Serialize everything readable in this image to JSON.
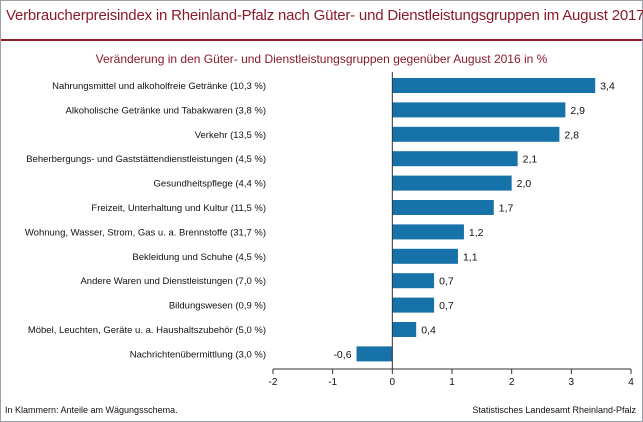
{
  "header": {
    "title": "Verbraucherpreisindex in Rheinland-Pfalz nach Güter- und Dienstleistungsgruppen im August 2017"
  },
  "chart_data": {
    "type": "bar",
    "orientation": "horizontal",
    "title": "Verbraucherpreisindex in Rheinland-Pfalz nach Güter- und Dienstleistungsgruppen im August 2017",
    "subtitle": "Veränderung in den Güter- und Dienstleistungsgruppen gegenüber August 2016 in %",
    "categories": [
      "Nahrungsmittel und alkoholfreie Getränke (10,3 %)",
      "Alkoholische Getränke und Tabakwaren (3,8 %)",
      "Verkehr (13,5 %)",
      "Beherbergungs- und Gaststättendienstleistungen (4,5 %)",
      "Gesundheitspflege (4,4 %)",
      "Freizeit, Unterhaltung und Kultur (11,5 %)",
      "Wohnung, Wasser, Strom, Gas u. a. Brennstoffe (31,7 %)",
      "Bekleidung und Schuhe (4,5 %)",
      "Andere Waren und Dienstleistungen (7,0 %)",
      "Bildungswesen (0,9 %)",
      "Möbel, Leuchten, Geräte u. a. Haushaltszubehör  (5,0 %)",
      "Nachrichtenübermittlung (3,0 %)"
    ],
    "values": [
      3.4,
      2.9,
      2.8,
      2.1,
      2.0,
      1.7,
      1.2,
      1.1,
      0.7,
      0.7,
      0.4,
      -0.6
    ],
    "value_labels": [
      "3,4",
      "2,9",
      "2,8",
      "2,1",
      "2,0",
      "1,7",
      "1,2",
      "1,1",
      "0,7",
      "0,7",
      "0,4",
      "-0,6"
    ],
    "xlim": [
      -2,
      4
    ],
    "xticks": [
      -2,
      -1,
      0,
      1,
      2,
      3,
      4
    ],
    "xtick_labels": [
      "-2",
      "-1",
      "0",
      "1",
      "2",
      "3",
      "4"
    ],
    "xlabel": "",
    "ylabel": "",
    "grid": false,
    "bar_color": "#1672a8"
  },
  "footer": {
    "note": "In Klammern: Anteile am Wägungsschema.",
    "source": "Statistisches Landesamt Rheinland-Pfalz"
  },
  "colors": {
    "accent": "#8b1a2b",
    "bar": "#1672a8",
    "axis": "#333333"
  }
}
